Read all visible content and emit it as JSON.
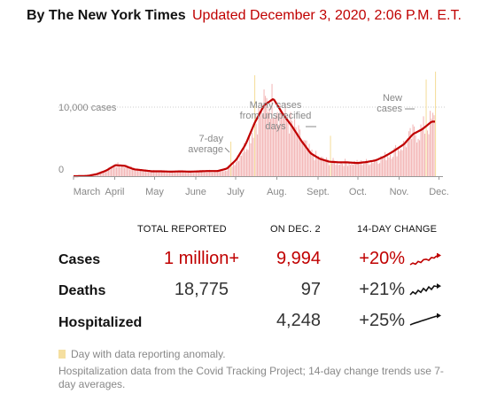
{
  "header": {
    "byline": "By The New York Times",
    "updated": "Updated December 3, 2020, 2:06 P.M. E.T."
  },
  "colors": {
    "accent_red": "#c00000",
    "bar_pink": "#f3b9b9",
    "anomaly_yellow": "#f5dfa0",
    "text_dark": "#121212",
    "text_gray": "#888888"
  },
  "chart_data": {
    "type": "bar",
    "series_line": "7-day average",
    "y_ticks": [
      {
        "value": 10000,
        "label": "10,000 cases"
      },
      {
        "value": 0,
        "label": "0"
      }
    ],
    "ylim": [
      0,
      13500
    ],
    "x_tick_labels": [
      "March",
      "April",
      "May",
      "June",
      "July",
      "Aug.",
      "Sept.",
      "Oct.",
      "Nov.",
      "Dec."
    ],
    "x_tick_day_index": [
      0,
      31,
      61,
      92,
      122,
      153,
      184,
      214,
      245,
      275
    ],
    "start_date": "2020-03-01",
    "weekly_averages": [
      5,
      40,
      300,
      800,
      1600,
      1500,
      1000,
      850,
      700,
      700,
      650,
      700,
      650,
      700,
      750,
      750,
      1100,
      2400,
      4600,
      7800,
      10300,
      11200,
      9000,
      7200,
      5100,
      3300,
      2500,
      2100,
      2000,
      2000,
      1900,
      2050,
      2300,
      2900,
      3700,
      4600,
      6100,
      6800,
      7900
    ],
    "anomaly_days": [
      118,
      136,
      193,
      265,
      272
    ],
    "annotations": [
      {
        "text": [
          "7-day",
          "average"
        ]
      },
      {
        "text": [
          "Many cases",
          "from unspecified",
          "days"
        ]
      },
      {
        "text": [
          "New",
          "cases"
        ]
      }
    ]
  },
  "table": {
    "headers": {
      "total": "TOTAL REPORTED",
      "on_date": "ON DEC. 2",
      "change": "14-DAY CHANGE"
    },
    "rows": [
      {
        "label": "Cases",
        "total": "1 million+",
        "on_date": "9,994",
        "change": "+20%",
        "trend": [
          1.0,
          1.3,
          1.1,
          1.6,
          1.4,
          1.9,
          2.0,
          1.8,
          2.3,
          2.2,
          2.6
        ]
      },
      {
        "label": "Deaths",
        "total": "18,775",
        "on_date": "97",
        "change": "+21%",
        "trend": [
          1.0,
          1.6,
          1.2,
          1.9,
          1.5,
          2.3,
          1.8,
          2.6,
          2.1,
          2.8,
          2.7
        ]
      },
      {
        "label": "Hospitalized",
        "total": "",
        "on_date": "4,248",
        "change": "+25%",
        "trend": [
          1.0,
          1.2,
          1.35,
          1.5,
          1.65,
          1.8,
          1.95,
          2.1,
          2.25,
          2.4,
          2.55
        ]
      }
    ]
  },
  "legend": {
    "anomaly": "Day with data reporting anomaly."
  },
  "source_note": "Hospitalization data from the Covid Tracking Project; 14-day change trends use 7-day averages."
}
